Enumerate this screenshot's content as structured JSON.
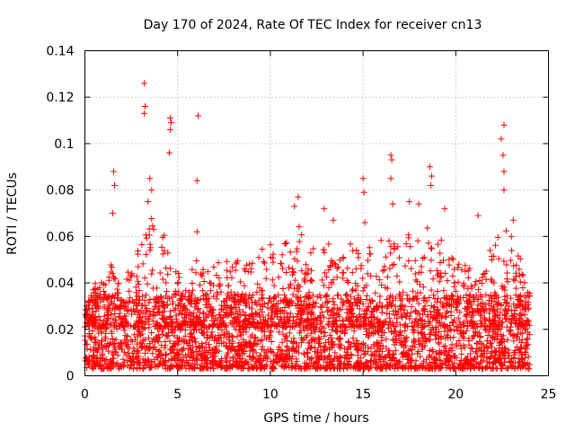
{
  "chart_data": {
    "type": "scatter",
    "title": "Day 170 of 2024, Rate Of TEC Index for receiver cn13",
    "xlabel": "GPS time / hours",
    "ylabel": "ROTI / TECUs",
    "xlim": [
      0,
      25
    ],
    "ylim": [
      0,
      0.14
    ],
    "x_ticks": [
      0,
      5,
      10,
      15,
      20,
      25
    ],
    "y_ticks": [
      0,
      0.02,
      0.04,
      0.06,
      0.08,
      0.1,
      0.12,
      0.14
    ],
    "x_tick_labels": [
      "0",
      "5",
      "10",
      "15",
      "20",
      "25"
    ],
    "y_tick_labels": [
      "0",
      "0.02",
      "0.04",
      "0.06",
      "0.08",
      "0.1",
      "0.12",
      "0.14"
    ],
    "grid": true,
    "marker": "+",
    "marker_color": "#ff0000",
    "series": [
      {
        "name": "ROTI",
        "note": "dense band of ~0.005-0.035 TECU/s across 0-24 h; upper envelope and notable peaks listed",
        "envelope": [
          {
            "x": 0.0,
            "y": 0.028
          },
          {
            "x": 0.5,
            "y": 0.04
          },
          {
            "x": 1.0,
            "y": 0.042
          },
          {
            "x": 1.5,
            "y": 0.05
          },
          {
            "x": 2.0,
            "y": 0.045
          },
          {
            "x": 2.5,
            "y": 0.05
          },
          {
            "x": 3.0,
            "y": 0.062
          },
          {
            "x": 3.5,
            "y": 0.07
          },
          {
            "x": 4.0,
            "y": 0.068
          },
          {
            "x": 4.5,
            "y": 0.055
          },
          {
            "x": 5.0,
            "y": 0.045
          },
          {
            "x": 5.5,
            "y": 0.043
          },
          {
            "x": 6.0,
            "y": 0.05
          },
          {
            "x": 6.5,
            "y": 0.045
          },
          {
            "x": 7.0,
            "y": 0.048
          },
          {
            "x": 7.5,
            "y": 0.052
          },
          {
            "x": 8.0,
            "y": 0.05
          },
          {
            "x": 8.5,
            "y": 0.055
          },
          {
            "x": 9.0,
            "y": 0.052
          },
          {
            "x": 9.5,
            "y": 0.055
          },
          {
            "x": 10.0,
            "y": 0.058
          },
          {
            "x": 10.5,
            "y": 0.055
          },
          {
            "x": 11.0,
            "y": 0.06
          },
          {
            "x": 11.5,
            "y": 0.065
          },
          {
            "x": 12.0,
            "y": 0.058
          },
          {
            "x": 12.5,
            "y": 0.055
          },
          {
            "x": 13.0,
            "y": 0.06
          },
          {
            "x": 13.5,
            "y": 0.056
          },
          {
            "x": 14.0,
            "y": 0.055
          },
          {
            "x": 14.5,
            "y": 0.058
          },
          {
            "x": 15.0,
            "y": 0.06
          },
          {
            "x": 15.5,
            "y": 0.055
          },
          {
            "x": 16.0,
            "y": 0.06
          },
          {
            "x": 16.5,
            "y": 0.062
          },
          {
            "x": 17.0,
            "y": 0.058
          },
          {
            "x": 17.5,
            "y": 0.062
          },
          {
            "x": 18.0,
            "y": 0.06
          },
          {
            "x": 18.5,
            "y": 0.068
          },
          {
            "x": 19.0,
            "y": 0.06
          },
          {
            "x": 19.5,
            "y": 0.058
          },
          {
            "x": 20.0,
            "y": 0.05
          },
          {
            "x": 20.5,
            "y": 0.048
          },
          {
            "x": 21.0,
            "y": 0.045
          },
          {
            "x": 21.5,
            "y": 0.05
          },
          {
            "x": 22.0,
            "y": 0.058
          },
          {
            "x": 22.5,
            "y": 0.065
          },
          {
            "x": 23.0,
            "y": 0.06
          },
          {
            "x": 23.5,
            "y": 0.05
          },
          {
            "x": 24.0,
            "y": 0.04
          }
        ],
        "peaks": [
          {
            "x": 1.55,
            "y": 0.088
          },
          {
            "x": 1.6,
            "y": 0.082
          },
          {
            "x": 1.5,
            "y": 0.07
          },
          {
            "x": 3.2,
            "y": 0.126
          },
          {
            "x": 3.25,
            "y": 0.116
          },
          {
            "x": 3.2,
            "y": 0.113
          },
          {
            "x": 3.5,
            "y": 0.085
          },
          {
            "x": 3.6,
            "y": 0.08
          },
          {
            "x": 3.4,
            "y": 0.075
          },
          {
            "x": 4.6,
            "y": 0.111
          },
          {
            "x": 4.65,
            "y": 0.109
          },
          {
            "x": 4.6,
            "y": 0.106
          },
          {
            "x": 4.55,
            "y": 0.096
          },
          {
            "x": 6.1,
            "y": 0.112
          },
          {
            "x": 6.05,
            "y": 0.084
          },
          {
            "x": 6.05,
            "y": 0.062
          },
          {
            "x": 11.5,
            "y": 0.077
          },
          {
            "x": 11.3,
            "y": 0.073
          },
          {
            "x": 12.9,
            "y": 0.072
          },
          {
            "x": 13.4,
            "y": 0.067
          },
          {
            "x": 15.0,
            "y": 0.085
          },
          {
            "x": 15.05,
            "y": 0.079
          },
          {
            "x": 15.1,
            "y": 0.066
          },
          {
            "x": 16.5,
            "y": 0.095
          },
          {
            "x": 16.55,
            "y": 0.093
          },
          {
            "x": 16.5,
            "y": 0.085
          },
          {
            "x": 16.6,
            "y": 0.074
          },
          {
            "x": 17.5,
            "y": 0.075
          },
          {
            "x": 18.0,
            "y": 0.074
          },
          {
            "x": 18.6,
            "y": 0.09
          },
          {
            "x": 18.7,
            "y": 0.086
          },
          {
            "x": 18.65,
            "y": 0.082
          },
          {
            "x": 19.4,
            "y": 0.072
          },
          {
            "x": 21.2,
            "y": 0.069
          },
          {
            "x": 22.45,
            "y": 0.102
          },
          {
            "x": 22.6,
            "y": 0.108
          },
          {
            "x": 22.55,
            "y": 0.095
          },
          {
            "x": 22.6,
            "y": 0.088
          },
          {
            "x": 22.6,
            "y": 0.08
          },
          {
            "x": 23.1,
            "y": 0.067
          },
          {
            "x": 23.0,
            "y": 0.06
          }
        ],
        "dense_band": {
          "x_range": [
            0,
            24
          ],
          "y_range": [
            0.003,
            0.035
          ]
        }
      }
    ]
  }
}
